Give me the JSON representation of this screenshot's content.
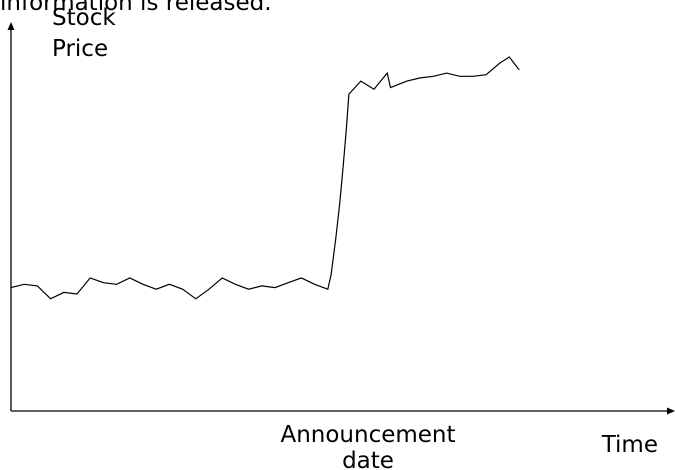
{
  "caption_fragment": "information is released.",
  "chart_data": {
    "type": "line",
    "title": "",
    "ylabel_lines": [
      "Stock",
      "Price"
    ],
    "xlabel": "Time",
    "xmark_label_lines": [
      "Announcement",
      "date"
    ],
    "x_axis_ticks": false,
    "y_axis_ticks": false,
    "grid": false,
    "legend": "none",
    "xlim": [
      0,
      100
    ],
    "ylim": [
      0,
      100
    ],
    "announcement_x": 48,
    "series": [
      {
        "color": "#000000",
        "points": [
          [
            0,
            30
          ],
          [
            2,
            31
          ],
          [
            4,
            30.5
          ],
          [
            6,
            26.5
          ],
          [
            8,
            28.5
          ],
          [
            10,
            28
          ],
          [
            12,
            33
          ],
          [
            14,
            31.5
          ],
          [
            16,
            31
          ],
          [
            18,
            33
          ],
          [
            20,
            31
          ],
          [
            22,
            29.5
          ],
          [
            24,
            31
          ],
          [
            26,
            29.5
          ],
          [
            28,
            26.5
          ],
          [
            30,
            29.5
          ],
          [
            32,
            33
          ],
          [
            34,
            31
          ],
          [
            36,
            29.5
          ],
          [
            38,
            30.5
          ],
          [
            40,
            30
          ],
          [
            42,
            31.5
          ],
          [
            44,
            33
          ],
          [
            46,
            31
          ],
          [
            48,
            29.5
          ],
          [
            48.5,
            34
          ],
          [
            49.2,
            45
          ],
          [
            49.8,
            56
          ],
          [
            50.3,
            67
          ],
          [
            50.8,
            79
          ],
          [
            51.2,
            90
          ],
          [
            53,
            94
          ],
          [
            55,
            91.5
          ],
          [
            57,
            96.5
          ],
          [
            57.5,
            92
          ],
          [
            60,
            94
          ],
          [
            62,
            95
          ],
          [
            64,
            95.5
          ],
          [
            66,
            96.5
          ],
          [
            68,
            95.5
          ],
          [
            70,
            95.5
          ],
          [
            72,
            96
          ],
          [
            74,
            99.5
          ],
          [
            75.5,
            101.5
          ],
          [
            77,
            97.5
          ]
        ]
      }
    ]
  }
}
